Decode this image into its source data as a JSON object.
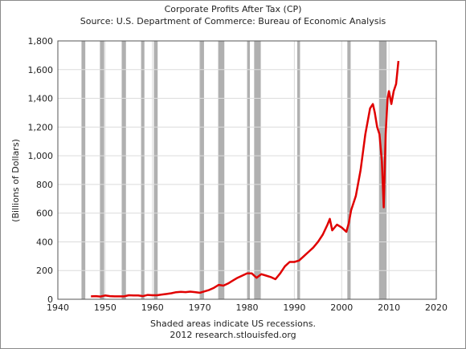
{
  "chart_data": {
    "type": "line",
    "title": "Corporate Profits After Tax (CP)",
    "subtitle": "Source: U.S. Department of Commerce: Bureau of Economic Analysis",
    "xlabel": "",
    "ylabel": "(Billions of Dollars)",
    "xlim": [
      1940,
      2020
    ],
    "ylim": [
      0,
      1800
    ],
    "xticks": [
      1940,
      1950,
      1960,
      1970,
      1980,
      1990,
      2000,
      2010,
      2020
    ],
    "yticks": [
      0,
      200,
      400,
      600,
      800,
      1000,
      1200,
      1400,
      1600,
      1800
    ],
    "ytick_labels": [
      "0",
      "200",
      "400",
      "600",
      "800",
      "1,000",
      "1,200",
      "1,400",
      "1,600",
      "1,800"
    ],
    "grid": true,
    "line_color": "#e00000",
    "recession_color": "#b0b0b0",
    "recessions": [
      [
        1945.0,
        1945.8
      ],
      [
        1948.9,
        1949.8
      ],
      [
        1953.5,
        1954.4
      ],
      [
        1957.6,
        1958.3
      ],
      [
        1960.3,
        1961.1
      ],
      [
        1969.9,
        1970.9
      ],
      [
        1973.9,
        1975.2
      ],
      [
        1980.0,
        1980.6
      ],
      [
        1981.5,
        1982.9
      ],
      [
        1990.6,
        1991.2
      ],
      [
        2001.2,
        2001.9
      ],
      [
        2007.9,
        2009.5
      ]
    ],
    "series": [
      {
        "x": [
          1947.0,
          1948.0,
          1949.0,
          1950.0,
          1951.0,
          1952.0,
          1953.0,
          1954.0,
          1955.0,
          1956.0,
          1957.0,
          1958.0,
          1959.0,
          1960.0,
          1961.0,
          1962.0,
          1963.0,
          1964.0,
          1965.0,
          1966.0,
          1967.0,
          1968.0,
          1969.0,
          1970.0,
          1971.0,
          1972.0,
          1973.0,
          1974.0,
          1975.0,
          1976.0,
          1977.0,
          1978.0,
          1979.0,
          1980.0,
          1981.0,
          1982.0,
          1983.0,
          1984.0,
          1985.0,
          1986.0,
          1987.0,
          1988.0,
          1989.0,
          1990.0,
          1991.0,
          1992.0,
          1993.0,
          1994.0,
          1995.0,
          1996.0,
          1997.0,
          1997.5,
          1998.0,
          1999.0,
          2000.0,
          2001.0,
          2001.5,
          2002.0,
          2003.0,
          2004.0,
          2005.0,
          2006.0,
          2006.6,
          2007.0,
          2007.5,
          2008.0,
          2008.5,
          2008.9,
          2009.3,
          2009.7,
          2010.0,
          2010.5,
          2011.0,
          2011.5,
          2012.0
        ],
        "y": [
          20,
          22,
          19,
          26,
          22,
          20,
          20,
          20,
          28,
          27,
          26,
          22,
          30,
          28,
          28,
          33,
          37,
          42,
          49,
          52,
          50,
          53,
          50,
          45,
          55,
          65,
          80,
          100,
          95,
          110,
          130,
          150,
          165,
          180,
          180,
          150,
          175,
          165,
          155,
          140,
          180,
          230,
          260,
          260,
          270,
          300,
          330,
          360,
          400,
          450,
          520,
          560,
          480,
          520,
          500,
          470,
          530,
          620,
          720,
          900,
          1150,
          1330,
          1360,
          1300,
          1200,
          1150,
          960,
          640,
          1150,
          1400,
          1450,
          1360,
          1450,
          1500,
          1660
        ]
      }
    ]
  },
  "footer": {
    "note": "Shaded areas indicate US recessions.",
    "credit": "2012 research.stlouisfed.org"
  }
}
